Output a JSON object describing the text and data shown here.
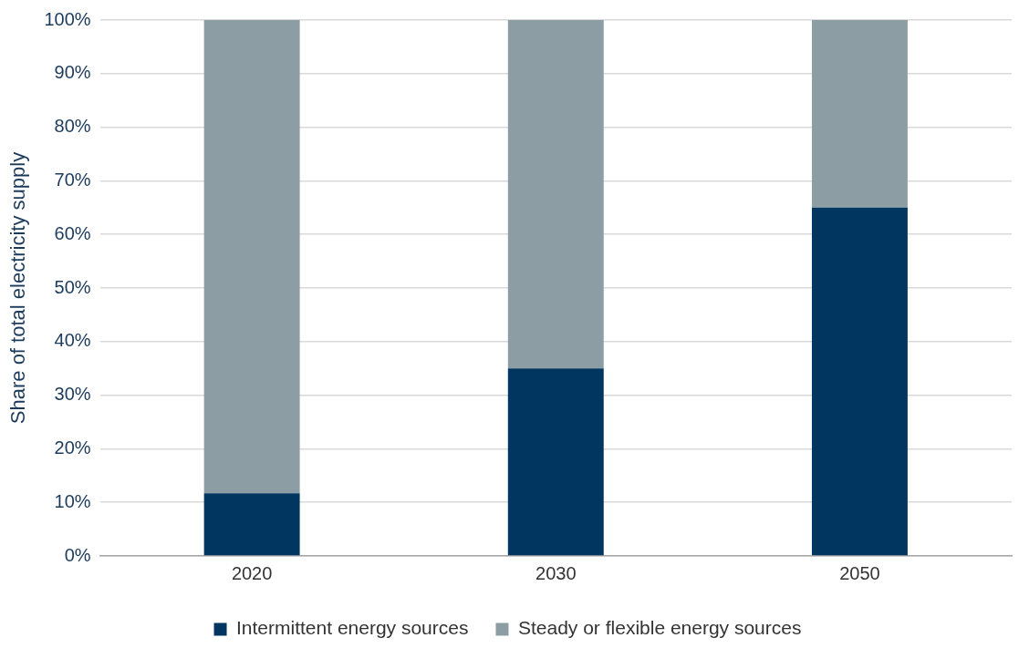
{
  "chart_data": {
    "type": "bar",
    "stacked": true,
    "ylabel": "Share of total electricity supply",
    "categories": [
      "2020",
      "2030",
      "2050"
    ],
    "series": [
      {
        "name": "Intermittent energy sources",
        "color": "#003660",
        "values": [
          11.7,
          35,
          65
        ]
      },
      {
        "name": "Steady or flexible energy sources",
        "color": "#8c9ea3",
        "values": [
          88.3,
          65,
          35
        ]
      }
    ],
    "ylim": [
      0,
      100
    ],
    "yticks": [
      {
        "value": 0,
        "label": "0%"
      },
      {
        "value": 10,
        "label": "10%"
      },
      {
        "value": 20,
        "label": "20%"
      },
      {
        "value": 30,
        "label": "30%"
      },
      {
        "value": 40,
        "label": "40%"
      },
      {
        "value": 50,
        "label": "50%"
      },
      {
        "value": 60,
        "label": "60%"
      },
      {
        "value": 70,
        "label": "70%"
      },
      {
        "value": 80,
        "label": "80%"
      },
      {
        "value": 90,
        "label": "90%"
      },
      {
        "value": 100,
        "label": "100%"
      }
    ],
    "grid": "y",
    "legend": "bottom"
  }
}
